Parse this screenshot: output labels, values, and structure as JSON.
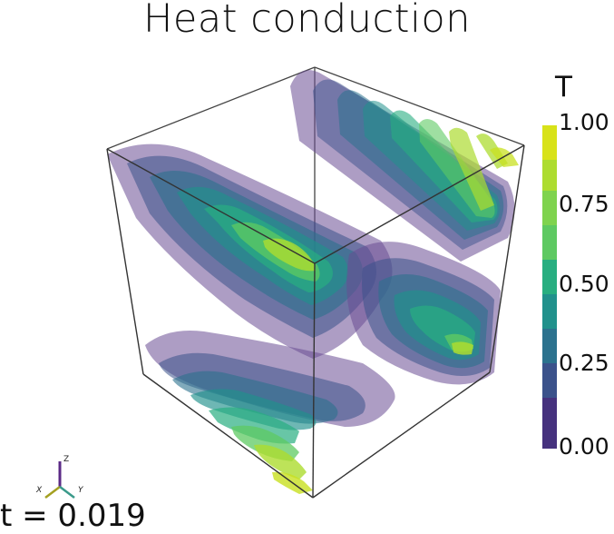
{
  "title": "Heat conduction",
  "colorbar": {
    "title": "T",
    "ticks": [
      "1.00",
      "0.75",
      "0.50",
      "0.25",
      "0.00"
    ],
    "colors": [
      "#440154",
      "#472d7b",
      "#3b528b",
      "#2c728e",
      "#21918c",
      "#28ae80",
      "#5ec962",
      "#addc30",
      "#fde725"
    ]
  },
  "time_label": "t = 0.019",
  "axes_triad": {
    "x": "X",
    "y": "Y",
    "z": "Z"
  }
}
